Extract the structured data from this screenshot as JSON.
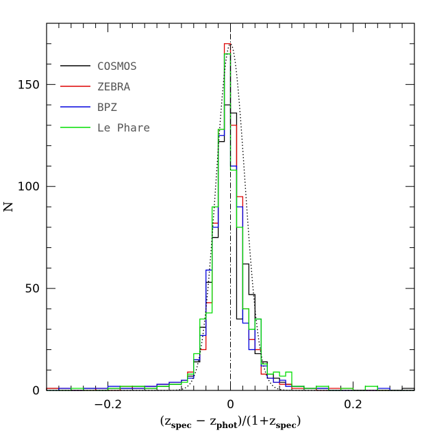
{
  "chart_data": {
    "type": "line",
    "xlabel": "(z_spec − z_phot)/(1+z_spec)",
    "xlabel_parts": {
      "open": "(z",
      "sub1": "spec",
      "mid": " − z",
      "sub2": "phot",
      "mid2": ")/(1+z",
      "sub3": "spec",
      "close": ")"
    },
    "ylabel": "N",
    "xlim": [
      -0.3,
      0.3
    ],
    "ylim": [
      0,
      180
    ],
    "x_ticks": [
      -0.2,
      0,
      0.2
    ],
    "x_tick_labels": [
      "−0.2",
      "0",
      "0.2"
    ],
    "y_ticks": [
      0,
      50,
      100,
      150
    ],
    "y_tick_labels": [
      "0",
      "50",
      "100",
      "150"
    ],
    "bin_edges": [
      -0.3,
      -0.28,
      -0.26,
      -0.24,
      -0.22,
      -0.2,
      -0.18,
      -0.16,
      -0.14,
      -0.12,
      -0.1,
      -0.08,
      -0.07,
      -0.06,
      -0.05,
      -0.04,
      -0.03,
      -0.02,
      -0.01,
      0,
      0.01,
      0.02,
      0.03,
      0.04,
      0.05,
      0.06,
      0.07,
      0.08,
      0.09,
      0.1,
      0.12,
      0.14,
      0.16,
      0.18,
      0.2,
      0.22,
      0.24,
      0.26,
      0.28,
      0.3
    ],
    "series": [
      {
        "name": "COSMOS",
        "color": "#000000",
        "values": [
          1,
          0,
          0,
          1,
          0,
          1,
          1,
          2,
          1,
          2,
          3,
          5,
          7,
          14,
          31,
          53,
          75,
          122,
          140,
          136,
          35,
          62,
          47,
          18,
          14,
          8,
          6,
          4,
          3,
          2,
          1,
          1,
          0,
          0,
          0,
          0,
          0,
          0,
          1
        ]
      },
      {
        "name": "ZEBRA",
        "color": "#dd0000",
        "values": [
          1,
          1,
          0,
          0,
          1,
          0,
          2,
          1,
          2,
          3,
          4,
          5,
          9,
          15,
          20,
          43,
          82,
          128,
          170,
          130,
          95,
          40,
          25,
          20,
          8,
          6,
          4,
          3,
          3,
          1,
          1,
          0,
          1,
          1,
          0,
          0,
          0,
          0,
          0
        ]
      },
      {
        "name": "BPZ",
        "color": "#0000dd",
        "values": [
          0,
          1,
          0,
          1,
          1,
          2,
          1,
          1,
          2,
          3,
          4,
          5,
          6,
          15,
          27,
          59,
          80,
          125,
          165,
          110,
          90,
          33,
          20,
          35,
          12,
          6,
          4,
          5,
          2,
          2,
          1,
          1,
          0,
          0,
          0,
          0,
          1,
          0,
          0
        ]
      },
      {
        "name": "Le Phare",
        "color": "#00dd00",
        "values": [
          0,
          0,
          1,
          0,
          0,
          1,
          2,
          2,
          1,
          2,
          3,
          4,
          8,
          18,
          35,
          38,
          90,
          128,
          165,
          108,
          80,
          40,
          30,
          35,
          13,
          8,
          9,
          7,
          9,
          2,
          1,
          2,
          0,
          1,
          0,
          2,
          0,
          0,
          0
        ]
      }
    ],
    "gaussian_fit": {
      "amplitude": 170,
      "mean": 0,
      "sigma": 0.0235,
      "style": "dotted"
    },
    "zero_line": {
      "x": 0,
      "style": "dash-dot"
    },
    "legend_position": "top-left",
    "grid": false
  }
}
